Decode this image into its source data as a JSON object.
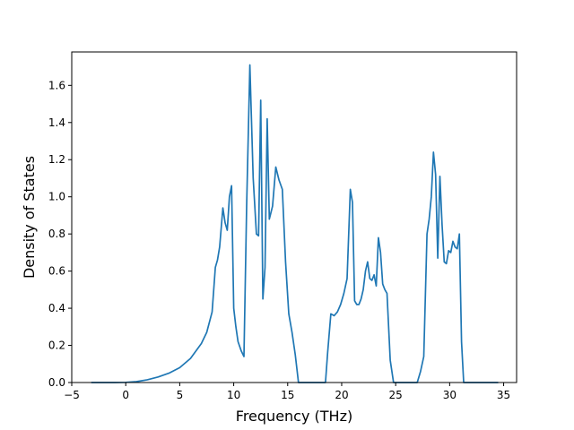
{
  "chart_data": {
    "type": "line",
    "title": "",
    "xlabel": "Frequency (THz)",
    "ylabel": "Density of States",
    "xlim": [
      -5,
      36.2
    ],
    "ylim": [
      0,
      1.78
    ],
    "xticks": [
      -5,
      0,
      5,
      10,
      15,
      20,
      25,
      30,
      35
    ],
    "xtick_labels": [
      "−5",
      "0",
      "5",
      "10",
      "15",
      "20",
      "25",
      "30",
      "35"
    ],
    "yticks": [
      0,
      0.2,
      0.4,
      0.6,
      0.8,
      1.0,
      1.2,
      1.4,
      1.6
    ],
    "ytick_labels": [
      "0.0",
      "0.2",
      "0.4",
      "0.6",
      "0.8",
      "1.0",
      "1.2",
      "1.4",
      "1.6"
    ],
    "grid": false,
    "legend": "none",
    "series": [
      {
        "color": "#1f77b4",
        "x": [
          -3.2,
          -1,
          0,
          1,
          2,
          3,
          4,
          5,
          6,
          7,
          7.5,
          8,
          8.3,
          8.5,
          8.7,
          9,
          9.2,
          9.4,
          9.6,
          9.8,
          10,
          10.2,
          10.4,
          10.7,
          10.95,
          11.2,
          11.5,
          11.8,
          12.1,
          12.3,
          12.5,
          12.7,
          12.9,
          13.1,
          13.3,
          13.6,
          13.9,
          14.2,
          14.5,
          14.8,
          15.1,
          15.4,
          15.7,
          16,
          18.5,
          18.7,
          19,
          19.3,
          19.6,
          19.9,
          20.2,
          20.5,
          20.8,
          21,
          21.2,
          21.4,
          21.6,
          21.8,
          22,
          22.2,
          22.4,
          22.6,
          22.8,
          23,
          23.2,
          23.4,
          23.6,
          23.8,
          24,
          24.2,
          24.5,
          24.8,
          25.1,
          25.4,
          27,
          27.3,
          27.6,
          27.9,
          28.1,
          28.3,
          28.5,
          28.7,
          28.9,
          29.1,
          29.3,
          29.5,
          29.7,
          29.9,
          30.1,
          30.3,
          30.5,
          30.7,
          30.9,
          31.1,
          31.3,
          31.5,
          34.5
        ],
        "y": [
          0,
          0,
          0.001,
          0.005,
          0.015,
          0.03,
          0.05,
          0.08,
          0.13,
          0.21,
          0.27,
          0.38,
          0.62,
          0.66,
          0.73,
          0.94,
          0.86,
          0.82,
          1.0,
          1.06,
          0.4,
          0.3,
          0.22,
          0.17,
          0.14,
          0.95,
          1.71,
          1.1,
          0.8,
          0.79,
          1.52,
          0.45,
          0.62,
          1.42,
          0.88,
          0.95,
          1.16,
          1.09,
          1.04,
          0.65,
          0.37,
          0.27,
          0.15,
          0.0,
          0.0,
          0.16,
          0.37,
          0.36,
          0.38,
          0.42,
          0.48,
          0.56,
          1.04,
          0.97,
          0.44,
          0.42,
          0.42,
          0.45,
          0.5,
          0.6,
          0.65,
          0.56,
          0.55,
          0.58,
          0.52,
          0.78,
          0.7,
          0.53,
          0.5,
          0.48,
          0.12,
          0.0,
          0.0,
          0.0,
          0.0,
          0.06,
          0.14,
          0.8,
          0.88,
          1.0,
          1.24,
          1.12,
          0.67,
          1.11,
          0.85,
          0.65,
          0.64,
          0.71,
          0.7,
          0.76,
          0.73,
          0.72,
          0.8,
          0.22,
          0.0,
          0.0,
          0.0
        ]
      }
    ]
  }
}
